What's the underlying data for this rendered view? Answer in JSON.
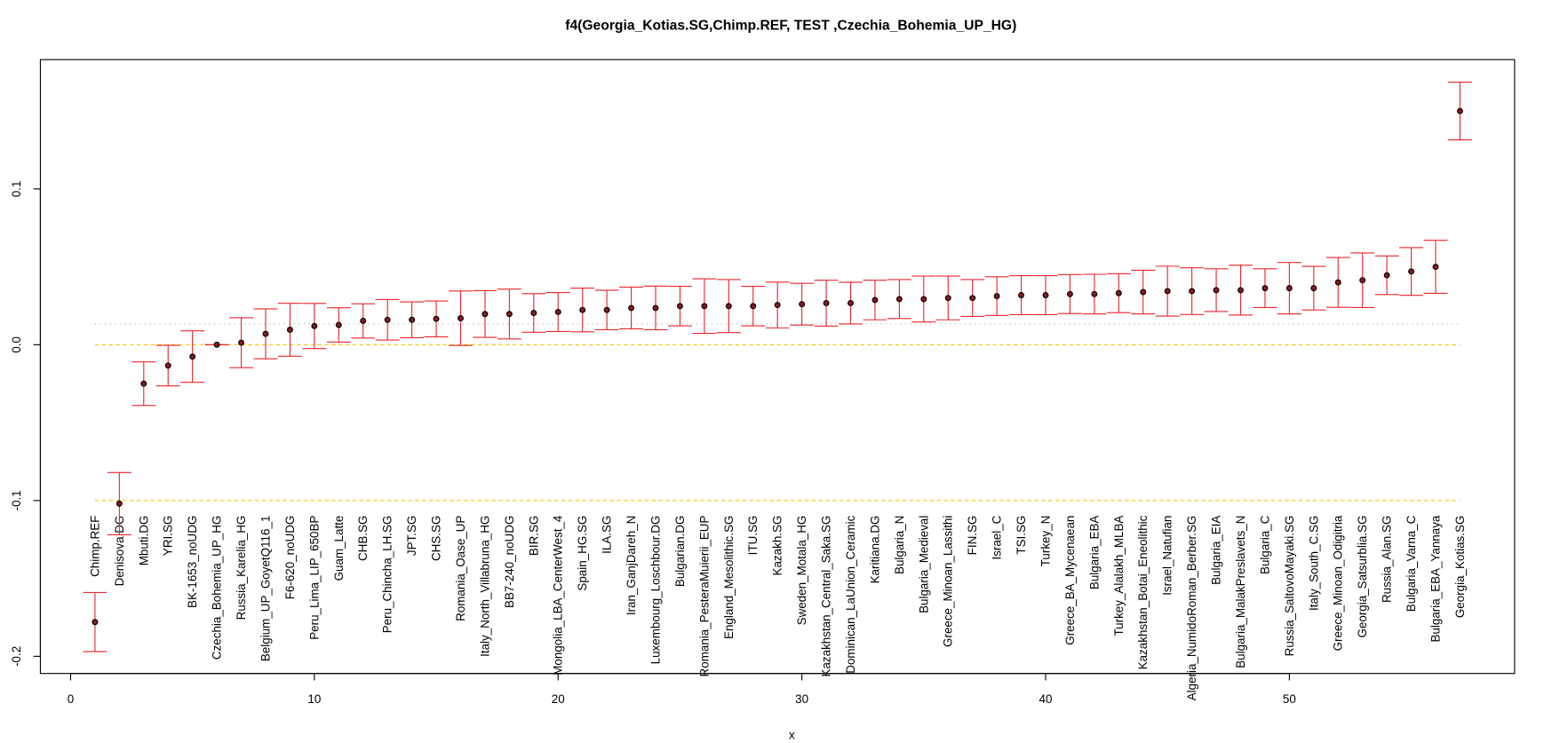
{
  "chart_data": {
    "type": "errorbar",
    "title": "f4(Georgia_Kotias.SG,Chimp.REF, TEST ,Czechia_Bohemia_UP_HG)",
    "x_label": "x",
    "categories": [
      "Chimp.REF",
      "Denisova.DG",
      "Mbuti.DG",
      "YRI.SG",
      "BK-1653_noUDG",
      "Czechia_Bohemia_UP_HG",
      "Russia_Karelia_HG",
      "Belgium_UP_GoyetQ116_1",
      "F6-620_noUDG",
      "Peru_Lima_LIP_650BP",
      "Guam_Latte",
      "CHB.SG",
      "Peru_Chincha_LH.SG",
      "JPT.SG",
      "CHS.SG",
      "Romania_Oase_UP",
      "Italy_North_Villabruna_HG",
      "BB7-240_noUDG",
      "BIR.SG",
      "Mongolia_LBA_CenterWest_4",
      "Spain_HG.SG",
      "ILA.SG",
      "Iran_GanjDareh_N",
      "Luxembourg_Loschbour.DG",
      "Bulgarian.DG",
      "Romania_PesteraMuierii_EUP",
      "England_Mesolithic.SG",
      "ITU.SG",
      "Kazakh.SG",
      "Sweden_Motala_HG",
      "Kazakhstan_Central_Saka.SG",
      "Dominican_LaUnion_Ceramic",
      "Karitiana.DG",
      "Bulgaria_N",
      "Bulgaria_Medieval",
      "Greece_Minoan_Lassithi",
      "FIN.SG",
      "Israel_C",
      "TSI.SG",
      "Turkey_N",
      "Greece_BA_Mycenaean",
      "Bulgaria_EBA",
      "Turkey_Alalakh_MLBA",
      "Kazakhstan_Botai_Eneolithic",
      "Israel_Natufian",
      "Algeria_NumidoRoman_Berber.SG",
      "Bulgaria_EIA",
      "Bulgaria_MalakPreslavets_N",
      "Bulgaria_C",
      "Russia_SaltovoMayaki.SG",
      "Italy_South_C.SG",
      "Greece_Minoan_Odigitria",
      "Georgia_Satsurblia.SG",
      "Russia_Alan.SG",
      "Bulgaria_Varna_C",
      "Bulgaria_EBA_Yannaya",
      "Georgia_Kotias.SG"
    ],
    "x": [
      1,
      2,
      3,
      4,
      5,
      6,
      7,
      8,
      9,
      10,
      11,
      12,
      13,
      14,
      15,
      16,
      17,
      18,
      19,
      20,
      21,
      22,
      23,
      24,
      25,
      26,
      27,
      28,
      29,
      30,
      31,
      32,
      33,
      34,
      35,
      36,
      37,
      38,
      39,
      40,
      41,
      42,
      43,
      44,
      45,
      46,
      47,
      48,
      49,
      50,
      51,
      52,
      53,
      54,
      55,
      56,
      57
    ],
    "values": [
      -0.178,
      -0.102,
      -0.025,
      -0.0134,
      -0.0076,
      0,
      0.0013,
      0.007,
      0.0096,
      0.012,
      0.0127,
      0.0153,
      0.016,
      0.016,
      0.0166,
      0.017,
      0.0197,
      0.0197,
      0.0204,
      0.021,
      0.0223,
      0.0223,
      0.0236,
      0.0236,
      0.0248,
      0.0248,
      0.0248,
      0.0248,
      0.0255,
      0.026,
      0.0267,
      0.0267,
      0.0287,
      0.0293,
      0.0293,
      0.03,
      0.03,
      0.0312,
      0.0318,
      0.0318,
      0.0325,
      0.0325,
      0.0331,
      0.0338,
      0.0344,
      0.0344,
      0.035,
      0.035,
      0.0363,
      0.0363,
      0.0363,
      0.04,
      0.0414,
      0.0446,
      0.047,
      0.05,
      0.15
    ],
    "errors": [
      0.019,
      0.02,
      0.014,
      0.013,
      0.0165,
      0,
      0.016,
      0.016,
      0.017,
      0.0145,
      0.011,
      0.011,
      0.013,
      0.0115,
      0.0115,
      0.0175,
      0.015,
      0.016,
      0.0124,
      0.0125,
      0.014,
      0.0127,
      0.0134,
      0.014,
      0.0127,
      0.0175,
      0.017,
      0.0127,
      0.0147,
      0.0134,
      0.0147,
      0.0134,
      0.0127,
      0.0125,
      0.0147,
      0.014,
      0.0118,
      0.0124,
      0.0125,
      0.0125,
      0.0125,
      0.0127,
      0.0125,
      0.014,
      0.016,
      0.015,
      0.0137,
      0.016,
      0.0124,
      0.0165,
      0.014,
      0.016,
      0.0175,
      0.0124,
      0.0153,
      0.017,
      0.0185
    ],
    "point_color": "#000000",
    "error_color": "#e8262d",
    "reference_lines": [
      {
        "value": 0,
        "color": "#ffc000",
        "style": "dashed"
      },
      {
        "value": -0.1,
        "color": "#ffc000",
        "style": "dashed"
      },
      {
        "value": 0.0134,
        "color": "#b0b0b0",
        "style": "dotted"
      }
    ],
    "xlim": [
      -1.24,
      59.24
    ],
    "xticks": [
      0,
      10,
      20,
      30,
      40,
      50
    ],
    "ylim": [
      -0.211,
      0.183
    ],
    "yticks": [
      -0.2,
      -0.1,
      {
        "value": 0,
        "label": "0.0"
      },
      0.1
    ]
  }
}
